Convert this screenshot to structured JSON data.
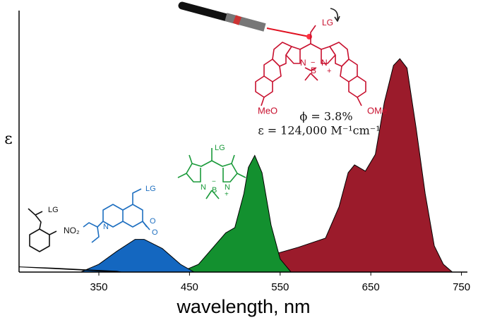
{
  "chart_data": {
    "type": "area",
    "x_label": "wavelength, nm",
    "y_label": "ε",
    "xlim": [
      262,
      755
    ],
    "ylim": [
      0,
      1
    ],
    "xticks": [
      350,
      450,
      550,
      650,
      750
    ],
    "series": [
      {
        "color": "#9b1b2b",
        "x": [
          530,
          545,
          570,
          600,
          615,
          625,
          632,
          644,
          655,
          665,
          675,
          682,
          690,
          700,
          710,
          720,
          730,
          740
        ],
        "values": [
          0,
          0.07,
          0.095,
          0.13,
          0.25,
          0.38,
          0.41,
          0.386,
          0.45,
          0.65,
          0.79,
          0.816,
          0.78,
          0.55,
          0.3,
          0.1,
          0.03,
          0
        ]
      },
      {
        "color": "#13902f",
        "x": [
          440,
          460,
          480,
          490,
          500,
          510,
          515,
          522,
          530,
          540,
          550,
          562
        ],
        "values": [
          0,
          0.03,
          0.11,
          0.15,
          0.17,
          0.3,
          0.4,
          0.446,
          0.38,
          0.18,
          0.05,
          0
        ]
      },
      {
        "color": "#1467c0",
        "x": [
          330,
          350,
          370,
          390,
          400,
          420,
          440,
          455
        ],
        "values": [
          0,
          0.03,
          0.08,
          0.125,
          0.125,
          0.09,
          0.03,
          0
        ]
      },
      {
        "color": "#6e6e6e",
        "x": [
          262,
          300,
          340,
          370,
          375
        ],
        "values": [
          0.02,
          0.015,
          0.008,
          0.003,
          0
        ]
      }
    ],
    "annotations": [
      {
        "text": "ϕ = 3.8%",
        "color": "#111111"
      },
      {
        "text": "ε = 124,000 M⁻¹cm⁻¹",
        "color": "#111111"
      },
      {
        "text": "LG",
        "color": "#c8102e"
      },
      {
        "text": "N",
        "color": "#c8102e"
      },
      {
        "text": "B",
        "color": "#c8102e"
      },
      {
        "text": "N",
        "color": "#c8102e"
      },
      {
        "text": "−",
        "color": "#c8102e"
      },
      {
        "text": "+",
        "color": "#c8102e"
      },
      {
        "text": "MeO",
        "color": "#c8102e"
      },
      {
        "text": "OMe",
        "color": "#c8102e"
      },
      {
        "text": "LG",
        "color": "#1a9a3a"
      },
      {
        "text": "N",
        "color": "#1a9a3a"
      },
      {
        "text": "B",
        "color": "#1a9a3a"
      },
      {
        "text": "N",
        "color": "#1a9a3a"
      },
      {
        "text": "−",
        "color": "#1a9a3a"
      },
      {
        "text": "+",
        "color": "#1a9a3a"
      },
      {
        "text": "LG",
        "color": "#1e6fc0"
      },
      {
        "text": "N",
        "color": "#1e6fc0"
      },
      {
        "text": "O",
        "color": "#1e6fc0"
      },
      {
        "text": "O",
        "color": "#1e6fc0"
      },
      {
        "text": "LG",
        "color": "#111111"
      },
      {
        "text": "NO₂",
        "color": "#111111"
      }
    ]
  }
}
